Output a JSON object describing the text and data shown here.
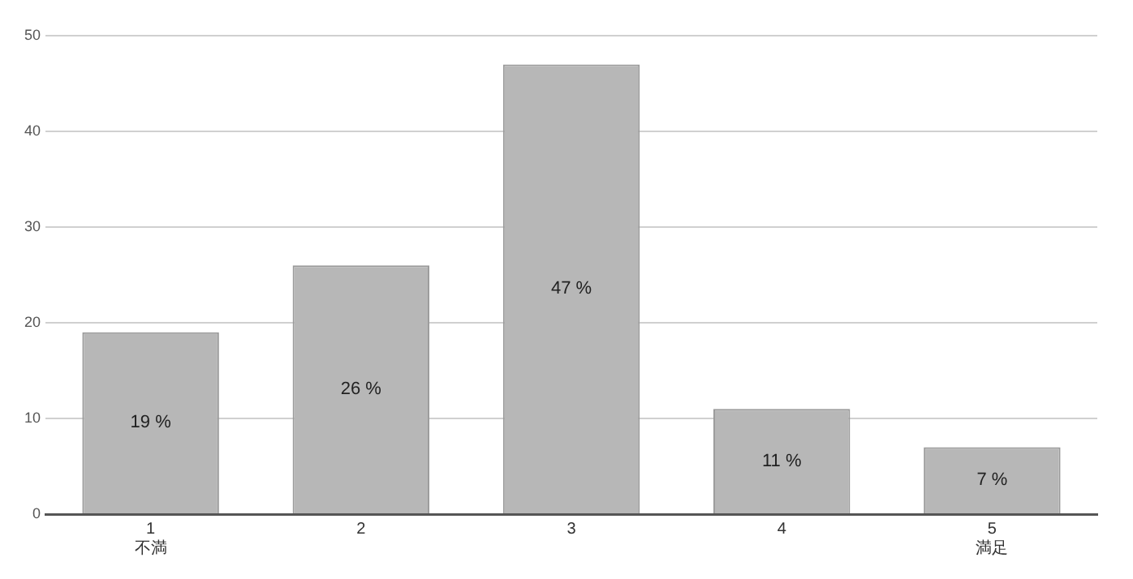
{
  "chart_data": {
    "type": "bar",
    "categories": [
      "1\n不満",
      "2",
      "3",
      "4",
      "5\n満足"
    ],
    "values": [
      19,
      26,
      47,
      11,
      7
    ],
    "value_labels": [
      "19 %",
      "26 %",
      "47 %",
      "11 %",
      "7 %"
    ],
    "color": "#b7b7b7",
    "ylim": [
      0,
      50
    ],
    "yticks": [
      0,
      10,
      20,
      30,
      40,
      50
    ],
    "grid": "y",
    "legend": false
  }
}
